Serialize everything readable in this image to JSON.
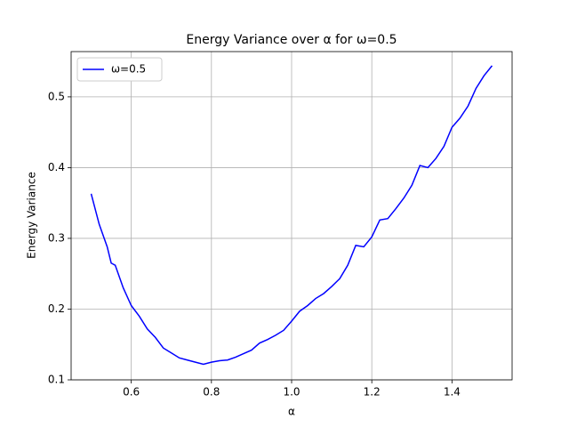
{
  "chart_data": {
    "type": "line",
    "title": "Energy Variance over α for ω=0.5",
    "xlabel": "α",
    "ylabel": "Energy Variance",
    "x": [
      0.5,
      0.52,
      0.54,
      0.55,
      0.56,
      0.58,
      0.6,
      0.62,
      0.64,
      0.66,
      0.68,
      0.7,
      0.72,
      0.74,
      0.76,
      0.78,
      0.8,
      0.82,
      0.84,
      0.86,
      0.88,
      0.9,
      0.92,
      0.94,
      0.96,
      0.98,
      1.0,
      1.02,
      1.04,
      1.06,
      1.08,
      1.1,
      1.12,
      1.14,
      1.16,
      1.18,
      1.2,
      1.22,
      1.24,
      1.26,
      1.28,
      1.3,
      1.32,
      1.34,
      1.36,
      1.38,
      1.4,
      1.42,
      1.44,
      1.46,
      1.48,
      1.5
    ],
    "series": [
      {
        "name": "ω=0.5",
        "color": "#0000ff",
        "values": [
          0.363,
          0.32,
          0.288,
          0.265,
          0.262,
          0.23,
          0.205,
          0.19,
          0.172,
          0.16,
          0.145,
          0.138,
          0.131,
          0.128,
          0.125,
          0.122,
          0.125,
          0.127,
          0.128,
          0.132,
          0.137,
          0.142,
          0.152,
          0.157,
          0.163,
          0.17,
          0.183,
          0.197,
          0.205,
          0.215,
          0.222,
          0.232,
          0.243,
          0.262,
          0.29,
          0.288,
          0.302,
          0.326,
          0.328,
          0.342,
          0.357,
          0.375,
          0.403,
          0.4,
          0.413,
          0.43,
          0.457,
          0.47,
          0.487,
          0.512,
          0.53,
          0.544
        ]
      }
    ],
    "xlim": [
      0.45,
      1.55
    ],
    "ylim": [
      0.1,
      0.564
    ],
    "xticks": [
      0.6,
      0.8,
      {
        "value": 1,
        "label": "1.0"
      },
      1.2,
      1.4
    ],
    "yticks": [
      0.1,
      0.2,
      0.3,
      0.4,
      0.5
    ],
    "grid": true,
    "legend": "upper left"
  }
}
